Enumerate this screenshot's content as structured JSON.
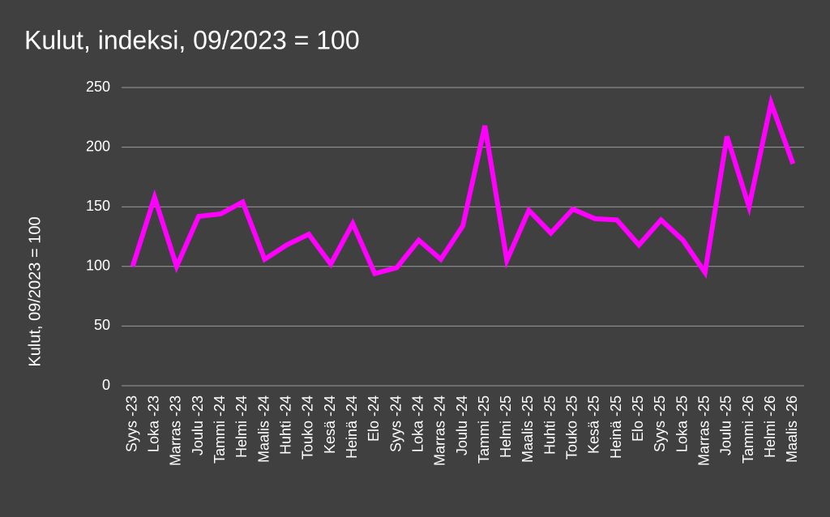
{
  "chart_data": {
    "type": "line",
    "title": "Kulut, indeksi, 09/2023 = 100",
    "y_label": "Kulut, 09/2023 = 100",
    "categories": [
      "Syys -23",
      "Loka -23",
      "Marras -23",
      "Joulu -23",
      "Tammi -24",
      "Helmi -24",
      "Maalis -24",
      "Huhti -24",
      "Touko -24",
      "Kesä -24",
      "Heinä -24",
      "Elo -24",
      "Syys -24",
      "Loka -24",
      "Marras -24",
      "Joulu -24",
      "Tammi -25",
      "Helmi -25",
      "Maalis -25",
      "Huhti -25",
      "Touko -25",
      "Kesä -25",
      "Heinä -25",
      "Elo -25",
      "Syys -25",
      "Loka -25",
      "Marras -25",
      "Joulu -25",
      "Tammi -26",
      "Helmi -26",
      "Maalis -26"
    ],
    "values": [
      100,
      158,
      100,
      142,
      144,
      154,
      106,
      118,
      127,
      102,
      136,
      94,
      99,
      122,
      106,
      134,
      218,
      105,
      147,
      128,
      148,
      140,
      139,
      118,
      139,
      122,
      95,
      209,
      150,
      237,
      186
    ],
    "color": "#ff00ff",
    "ylim": [
      0,
      250
    ],
    "yticks": [
      0,
      50,
      100,
      150,
      200,
      250
    ],
    "grid": true
  }
}
